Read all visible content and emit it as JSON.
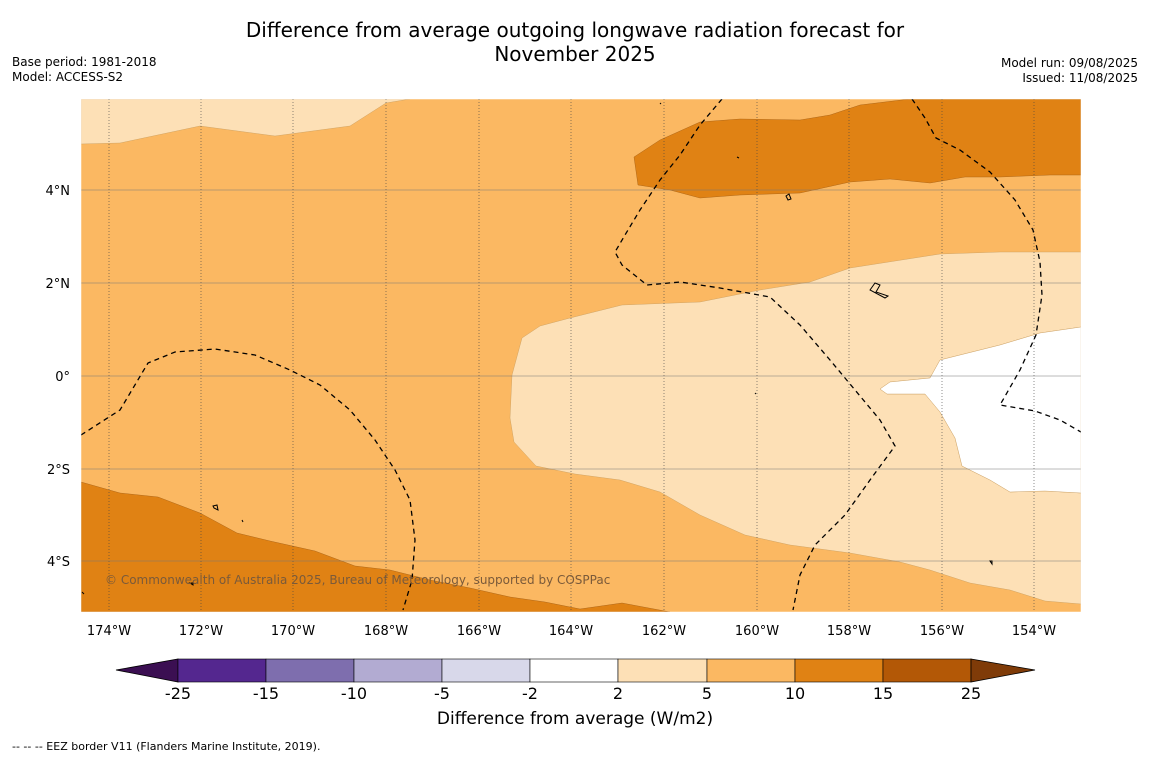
{
  "title_line1": "Difference from average outgoing longwave radiation forecast for",
  "title_line2": "November 2025",
  "base_period": "Base period: 1981-2018",
  "model": "Model: ACCESS-S2",
  "model_run": "Model run: 09/08/2025",
  "issued": "Issued: 11/08/2025",
  "copyright": "© Commonwealth of Australia 2025, Bureau of Meteorology, supported by COSPPac",
  "lon_ticks": [
    "174°W",
    "172°W",
    "170°W",
    "168°W",
    "166°W",
    "164°W",
    "162°W",
    "160°W",
    "158°W",
    "156°W",
    "154°W"
  ],
  "lat_ticks": [
    "4°N",
    "2°N",
    "0°",
    "2°S",
    "4°S"
  ],
  "colorbar": {
    "label": "Difference from average (W/m2)",
    "ticks": [
      "-25",
      "-15",
      "-10",
      "-5",
      "-2",
      "2",
      "5",
      "10",
      "15",
      "25"
    ],
    "colors": [
      "#3b0f52",
      "#54278f",
      "#7e6eae",
      "#b2abd2",
      "#d8d8ea",
      "#ffffff",
      "#fde0b6",
      "#fbb862",
      "#e08214",
      "#b35806",
      "#7f3b08"
    ]
  },
  "legend_note": "--  --  -- EEZ border V11 (Flanders Marine Institute, 2019)."
}
